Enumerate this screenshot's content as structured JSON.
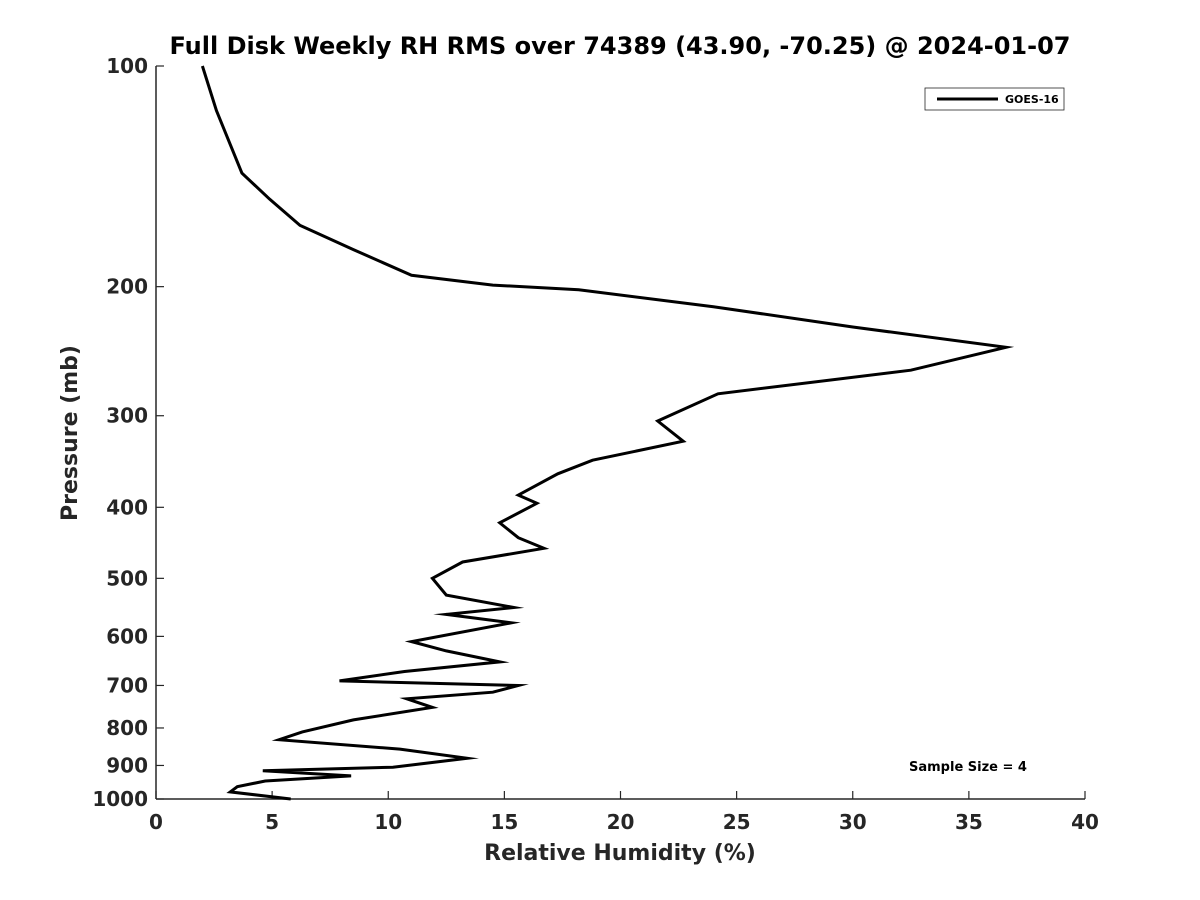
{
  "chart_data": {
    "type": "line",
    "title": "Full Disk Weekly RH RMS over 74389 (43.90, -70.25) @ 2024-01-07",
    "xlabel": "Relative Humidity (%)",
    "ylabel": "Pressure (mb)",
    "xlim": [
      0,
      40
    ],
    "ylim": [
      100,
      1000
    ],
    "y_scale": "log",
    "y_reversed": true,
    "grid": false,
    "legend_position": "top-right",
    "x_ticks": [
      "0",
      "5",
      "10",
      "15",
      "20",
      "25",
      "30",
      "35",
      "40"
    ],
    "y_ticks": [
      "100",
      "200",
      "300",
      "400",
      "500",
      "600",
      "700",
      "800",
      "900",
      "1000"
    ],
    "annotation": "Sample Size = 4",
    "series": [
      {
        "name": "GOES-16",
        "color": "#000000",
        "x": [
          2.0,
          2.6,
          3.7,
          4.9,
          6.2,
          8.5,
          11.0,
          14.5,
          18.2,
          24.0,
          30.0,
          36.6,
          32.5,
          24.2,
          21.6,
          22.7,
          18.8,
          17.3,
          15.6,
          16.4,
          14.8,
          15.6,
          16.7,
          13.2,
          11.9,
          12.5,
          15.4,
          12.5,
          15.3,
          11.0,
          12.5,
          14.8,
          10.7,
          7.9,
          15.6,
          14.5,
          10.8,
          11.9,
          8.5,
          6.3,
          5.3,
          10.5,
          13.4,
          10.2,
          4.6,
          8.4,
          4.7,
          3.5,
          3.2,
          5.8
        ],
        "y": [
          100,
          115,
          140,
          152,
          165,
          178,
          193,
          199,
          202,
          213,
          227,
          242,
          260,
          280,
          305,
          325,
          345,
          360,
          385,
          395,
          420,
          440,
          455,
          475,
          500,
          527,
          548,
          560,
          575,
          610,
          628,
          650,
          670,
          690,
          700,
          715,
          730,
          750,
          780,
          810,
          830,
          855,
          880,
          905,
          915,
          930,
          945,
          962,
          978,
          1000
        ]
      }
    ]
  }
}
